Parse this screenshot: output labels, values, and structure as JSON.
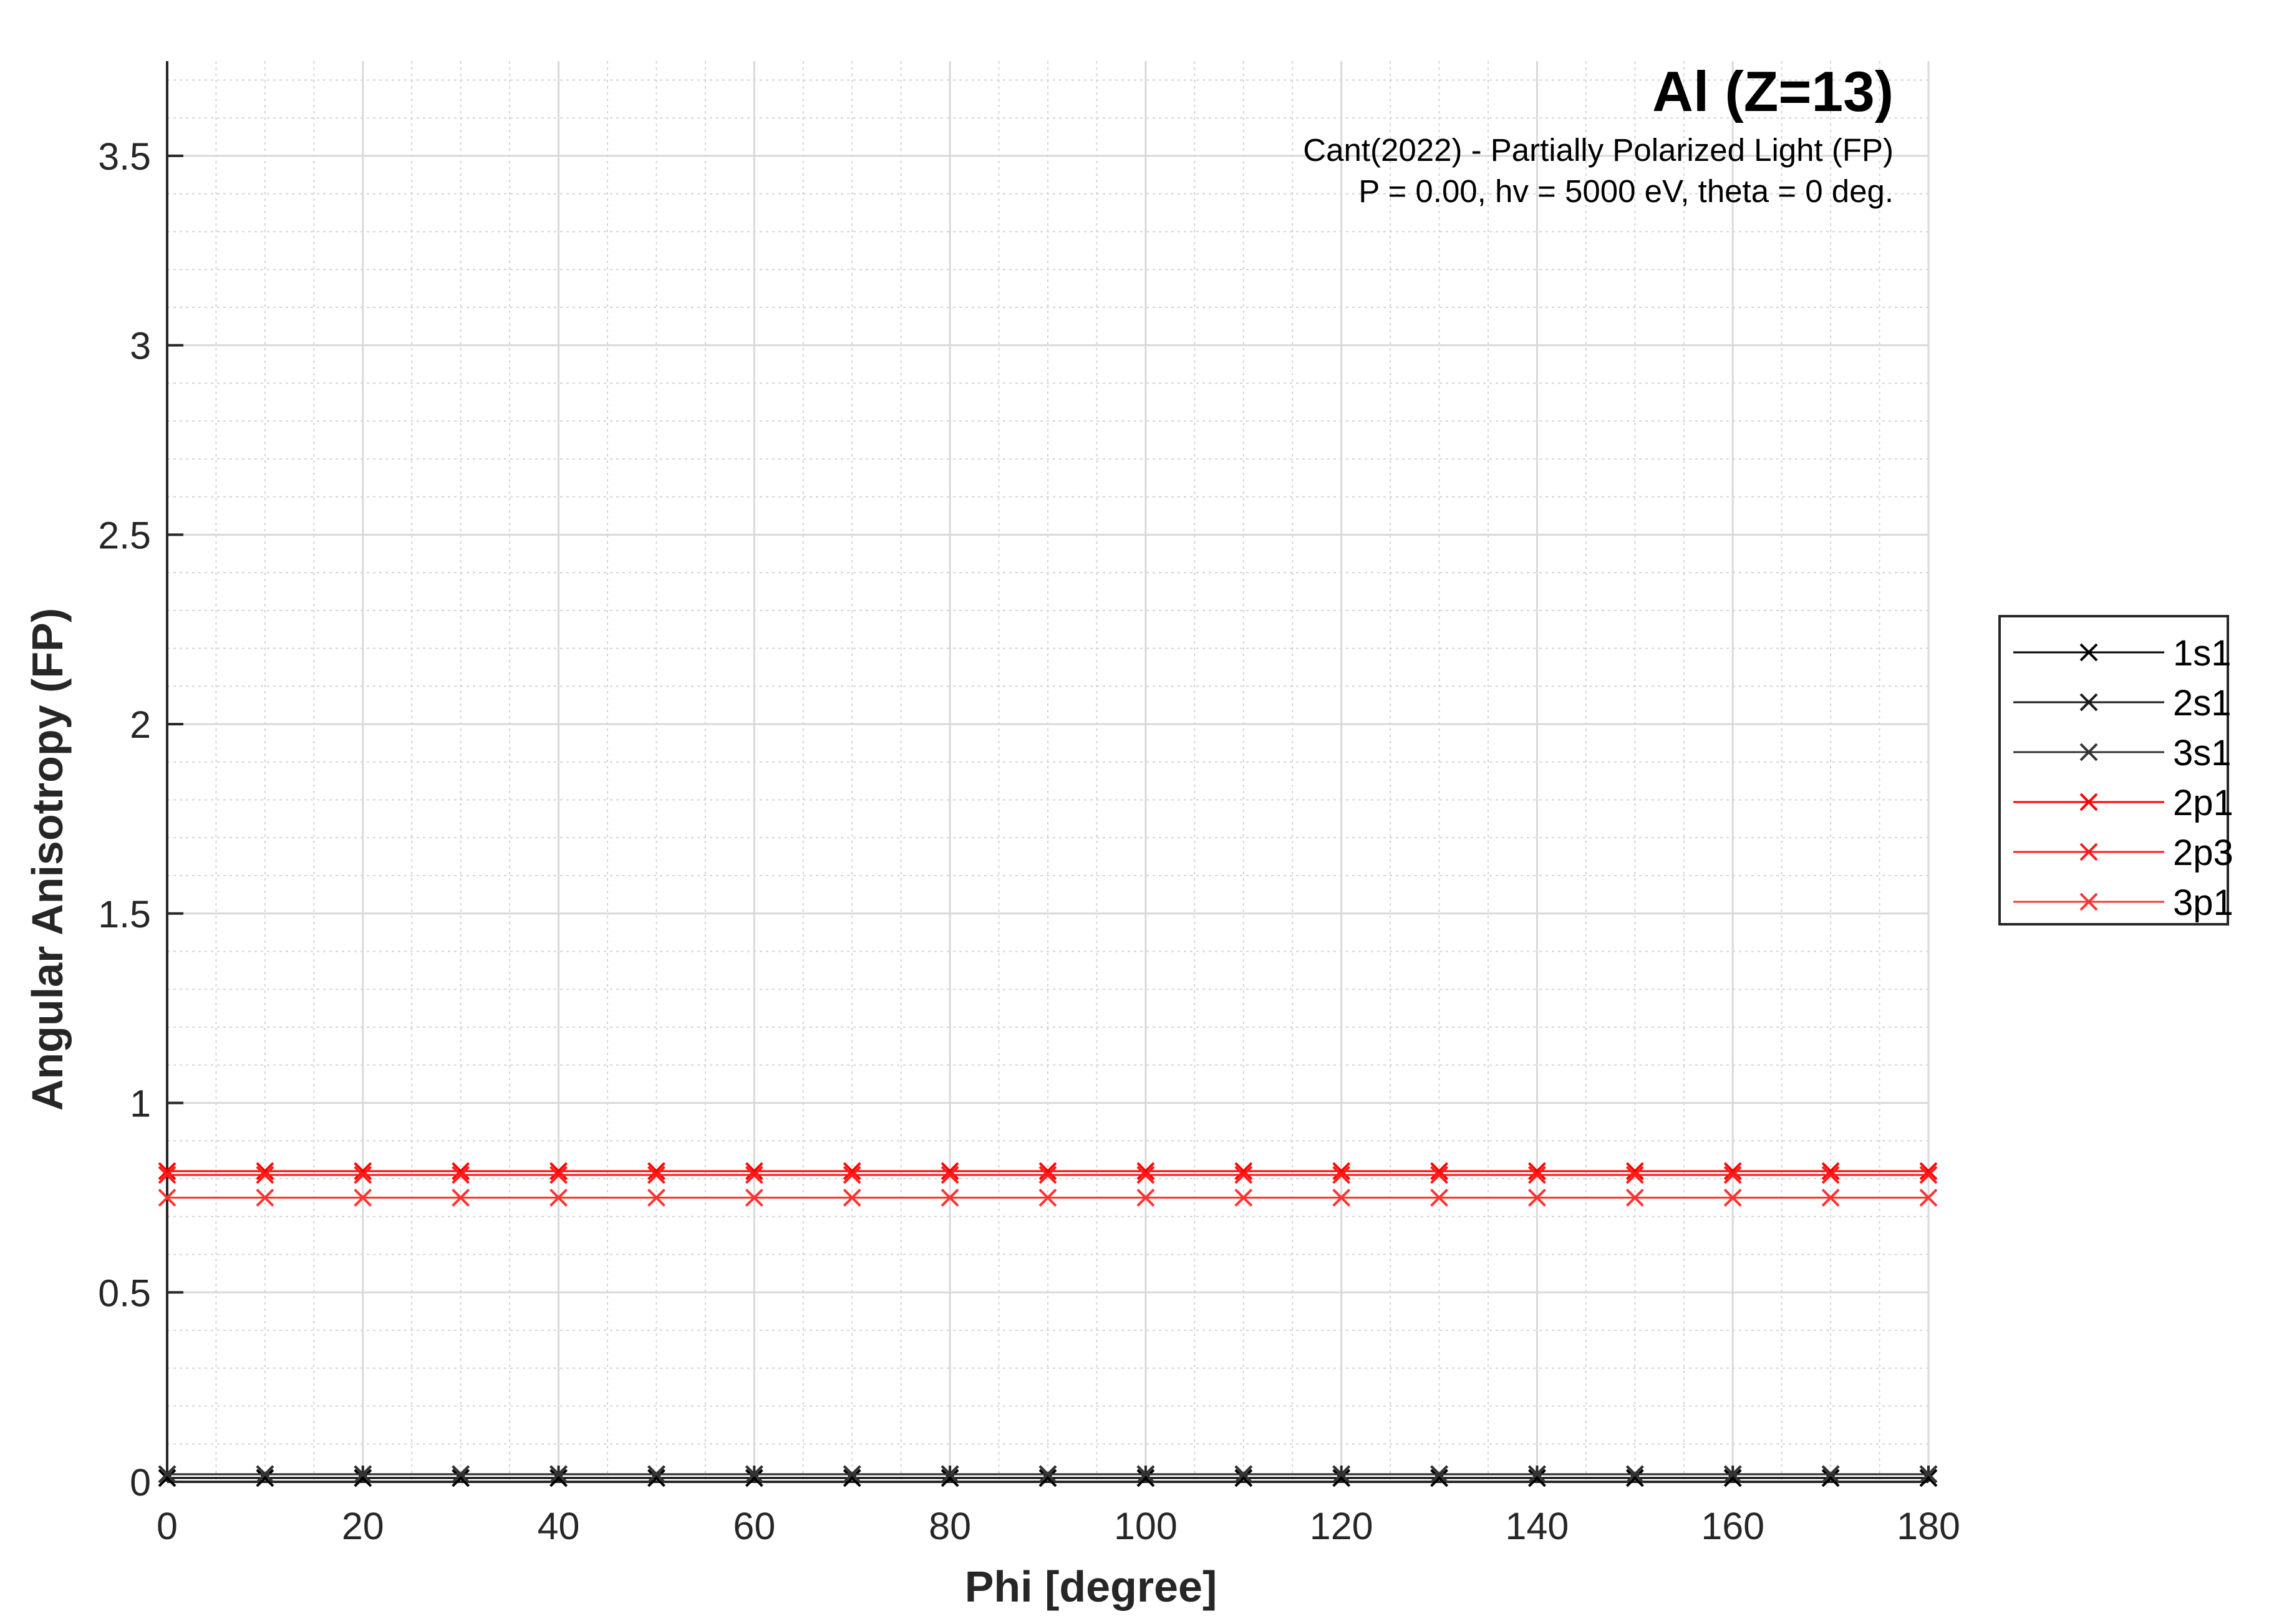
{
  "chart_data": {
    "type": "line",
    "title": "Al (Z=13)",
    "subtitle_lines": [
      "Cant(2022) - Partially Polarized Light (FP)",
      "P = 0.00, hv = 5000 eV, theta = 0 deg."
    ],
    "xlabel": "Phi [degree]",
    "ylabel": "Angular Anisotropy (FP)",
    "xlim": [
      0,
      180
    ],
    "ylim": [
      0,
      3.75
    ],
    "xticks": [
      0,
      20,
      40,
      60,
      80,
      100,
      120,
      140,
      160,
      180
    ],
    "xtick_labels": [
      "0",
      "20",
      "40",
      "60",
      "80",
      "100",
      "120",
      "140",
      "160",
      "180"
    ],
    "yticks": [
      0,
      0.5,
      1,
      1.5,
      2,
      2.5,
      3,
      3.5
    ],
    "ytick_labels": [
      "0",
      "0.5",
      "1",
      "1.5",
      "2",
      "2.5",
      "3",
      "3.5"
    ],
    "grid": true,
    "minor_grid": true,
    "legend_position": "outside-right",
    "marker": "x",
    "x": [
      0,
      10,
      20,
      30,
      40,
      50,
      60,
      70,
      80,
      90,
      100,
      110,
      120,
      130,
      140,
      150,
      160,
      170,
      180
    ],
    "series": [
      {
        "name": "1s1",
        "color": "#000000",
        "values": [
          0.01,
          0.01,
          0.01,
          0.01,
          0.01,
          0.01,
          0.01,
          0.01,
          0.01,
          0.01,
          0.01,
          0.01,
          0.01,
          0.01,
          0.01,
          0.01,
          0.01,
          0.01,
          0.01
        ]
      },
      {
        "name": "2s1",
        "color": "#1a1a1a",
        "values": [
          0.02,
          0.02,
          0.02,
          0.02,
          0.02,
          0.02,
          0.02,
          0.02,
          0.02,
          0.02,
          0.02,
          0.02,
          0.02,
          0.02,
          0.02,
          0.02,
          0.02,
          0.02,
          0.02
        ]
      },
      {
        "name": "3s1",
        "color": "#333333",
        "values": [
          0.02,
          0.02,
          0.02,
          0.02,
          0.02,
          0.02,
          0.02,
          0.02,
          0.02,
          0.02,
          0.02,
          0.02,
          0.02,
          0.02,
          0.02,
          0.02,
          0.02,
          0.02,
          0.02
        ]
      },
      {
        "name": "2p1",
        "color": "#ff0000",
        "values": [
          0.82,
          0.82,
          0.82,
          0.82,
          0.82,
          0.82,
          0.82,
          0.82,
          0.82,
          0.82,
          0.82,
          0.82,
          0.82,
          0.82,
          0.82,
          0.82,
          0.82,
          0.82,
          0.82
        ]
      },
      {
        "name": "2p3",
        "color": "#ff1a1a",
        "values": [
          0.81,
          0.81,
          0.81,
          0.81,
          0.81,
          0.81,
          0.81,
          0.81,
          0.81,
          0.81,
          0.81,
          0.81,
          0.81,
          0.81,
          0.81,
          0.81,
          0.81,
          0.81,
          0.81
        ]
      },
      {
        "name": "3p1",
        "color": "#ff3333",
        "values": [
          0.75,
          0.75,
          0.75,
          0.75,
          0.75,
          0.75,
          0.75,
          0.75,
          0.75,
          0.75,
          0.75,
          0.75,
          0.75,
          0.75,
          0.75,
          0.75,
          0.75,
          0.75,
          0.75
        ]
      }
    ]
  }
}
